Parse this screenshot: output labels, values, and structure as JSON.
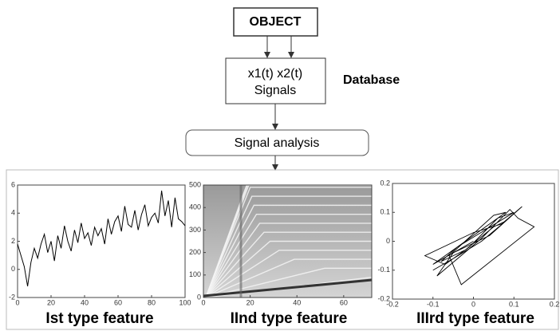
{
  "diagram": {
    "object": "OBJECT",
    "signals": [
      "x1(t) x2(t)",
      "Signals"
    ],
    "database": "Database",
    "analysis": "Signal analysis"
  },
  "chart_data": [
    {
      "type": "line",
      "title": "Ist type feature",
      "color": "#000000",
      "x": [
        0,
        2,
        4,
        6,
        8,
        10,
        12,
        14,
        16,
        18,
        20,
        22,
        24,
        26,
        28,
        30,
        32,
        34,
        36,
        38,
        40,
        42,
        44,
        46,
        48,
        50,
        52,
        54,
        56,
        58,
        60,
        62,
        64,
        66,
        68,
        70,
        72,
        74,
        76,
        78,
        80,
        82,
        84,
        86,
        88,
        90,
        92,
        94,
        96,
        98,
        100
      ],
      "values": [
        1.8,
        1.0,
        0.2,
        -1.2,
        0.5,
        1.5,
        0.8,
        1.8,
        2.5,
        1.2,
        2.0,
        0.6,
        2.4,
        1.5,
        3.1,
        2.0,
        1.3,
        2.8,
        1.9,
        3.3,
        2.2,
        2.6,
        1.7,
        3.0,
        2.4,
        2.9,
        1.8,
        3.6,
        2.5,
        3.4,
        3.8,
        2.7,
        4.5,
        3.2,
        3.0,
        4.2,
        2.8,
        3.9,
        4.6,
        3.1,
        3.7,
        4.0,
        3.3,
        5.6,
        3.8,
        4.9,
        3.0,
        5.1,
        3.6,
        3.4,
        3.1
      ],
      "xlim": [
        0,
        100
      ],
      "ylim": [
        -2,
        6
      ],
      "xticks": [
        0,
        20,
        40,
        60,
        80,
        100
      ],
      "yticks": [
        -2,
        0,
        2,
        4,
        6
      ]
    },
    {
      "type": "image",
      "title": "IInd type feature",
      "xlim": [
        0,
        72
      ],
      "ylim": [
        0,
        500
      ],
      "xticks": [
        0,
        20,
        40,
        60
      ],
      "yticks": [
        0,
        100,
        200,
        300,
        400,
        500
      ]
    },
    {
      "type": "phase",
      "title": "IIIrd type feature",
      "color": "#000000",
      "x": [
        -0.1,
        -0.05,
        0.02,
        0.08,
        0.05,
        -0.02,
        -0.08,
        -0.04,
        0.03,
        0.1,
        0.06,
        -0.01,
        -0.07,
        -0.12,
        0.0,
        0.07,
        0.12,
        0.04,
        -0.05,
        -0.09,
        0.02,
        0.09,
        0.11,
        0.15,
        -0.03,
        -0.06,
        0.05,
        0.08,
        -0.1,
        0.0
      ],
      "y": [
        -0.1,
        -0.06,
        0.0,
        0.07,
        0.05,
        -0.03,
        -0.07,
        -0.02,
        0.04,
        0.1,
        0.08,
        -0.02,
        -0.08,
        -0.05,
        0.03,
        0.06,
        0.12,
        0.02,
        -0.04,
        -0.12,
        0.01,
        0.11,
        0.08,
        0.05,
        -0.15,
        -0.05,
        0.09,
        0.1,
        -0.08,
        0.0
      ],
      "xlim": [
        -0.2,
        0.2
      ],
      "ylim": [
        -0.2,
        0.2
      ],
      "xticks": [
        -0.2,
        -0.1,
        0,
        0.1,
        0.2
      ],
      "yticks": [
        -0.2,
        -0.1,
        0,
        0.1,
        0.2
      ]
    }
  ]
}
